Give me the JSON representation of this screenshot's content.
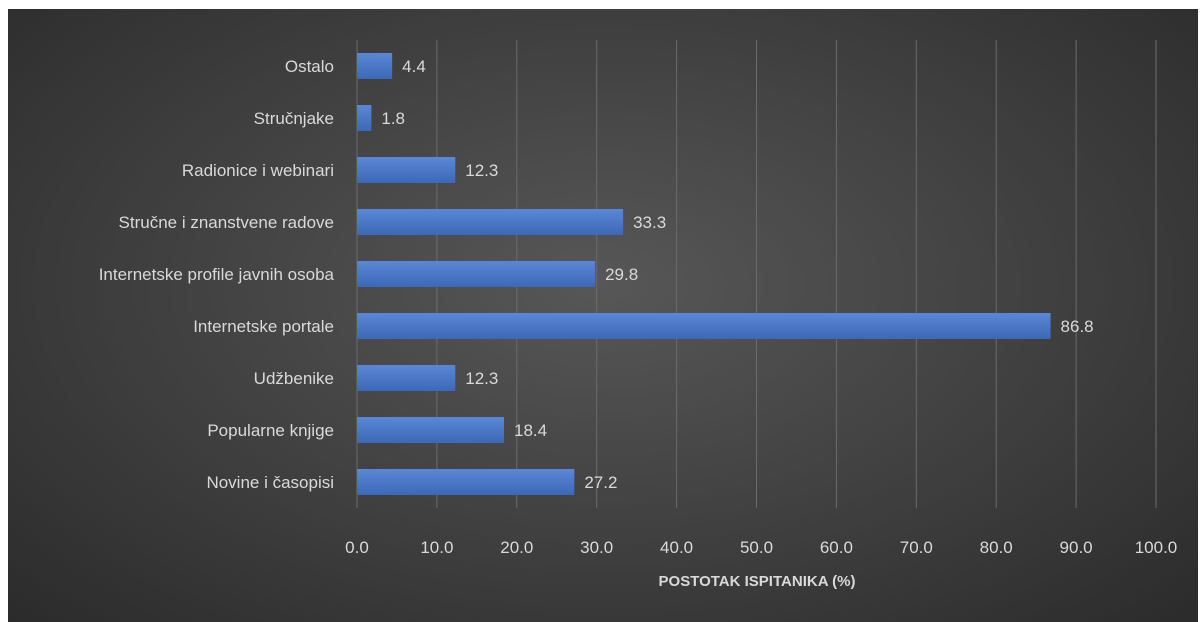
{
  "chart_data": {
    "type": "bar",
    "orientation": "horizontal",
    "categories": [
      "Ostalo",
      "Stručnjake",
      "Radionice i webinari",
      "Stručne i znanstvene radove",
      "Internetske profile javnih osoba",
      "Internetske portale",
      "Udžbenike",
      "Popularne knjige",
      "Novine i časopisi"
    ],
    "values": [
      4.4,
      1.8,
      12.3,
      33.3,
      29.8,
      86.8,
      12.3,
      18.4,
      27.2
    ],
    "value_labels": [
      "4.4",
      "1.8",
      "12.3",
      "33.3",
      "29.8",
      "86.8",
      "12.3",
      "18.4",
      "27.2"
    ],
    "x_ticks": [
      "0.0",
      "10.0",
      "20.0",
      "30.0",
      "40.0",
      "50.0",
      "60.0",
      "70.0",
      "80.0",
      "90.0",
      "100.0"
    ],
    "xlabel": "POSTOTAK ISPITANIKA (%)",
    "ylabel": "",
    "title": "",
    "xlim": [
      0,
      100
    ],
    "grid": true,
    "legend": "none",
    "colors": {
      "bar": "#4472c4",
      "bar_light": "#5b87d6",
      "grid": "#6b6b6b",
      "text": "#d9d9d9"
    }
  }
}
